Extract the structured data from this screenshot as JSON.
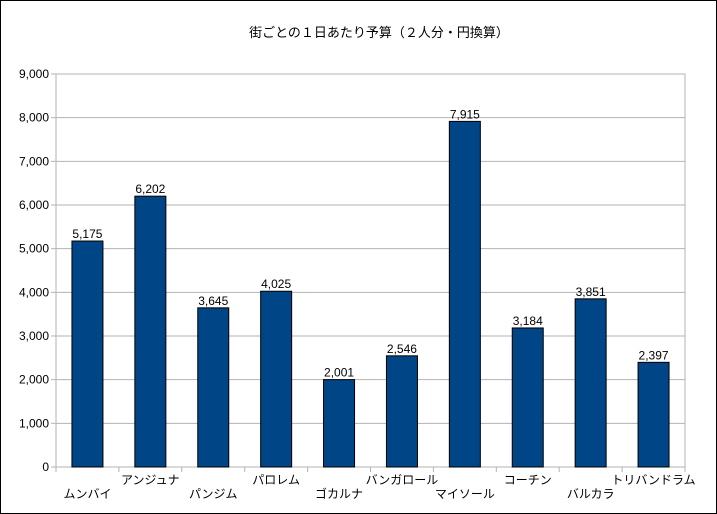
{
  "chart_data": {
    "type": "bar",
    "title": "街ごとの１日あたり予算（２人分・円換算）",
    "xlabel": "",
    "ylabel": "",
    "ylim": [
      0,
      9000
    ],
    "y_ticks": [
      "0",
      "1,000",
      "2,000",
      "3,000",
      "4,000",
      "5,000",
      "6,000",
      "7,000",
      "8,000",
      "9,000"
    ],
    "grid": true,
    "legend": "none",
    "categories": [
      "ムンバイ",
      "アンジュナ",
      "パンジム",
      "パロレム",
      "ゴカルナ",
      "バンガロール",
      "マイソール",
      "コーチン",
      "バルカラ",
      "トリバンドラム"
    ],
    "values": [
      5175,
      6202,
      3645,
      4025,
      2001,
      2546,
      7915,
      3184,
      3851,
      2397
    ],
    "value_labels": [
      "5,175",
      "6,202",
      "3,645",
      "4,025",
      "2,001",
      "2,546",
      "7,915",
      "3,184",
      "3,851",
      "2,397"
    ],
    "colors": {
      "bar": "#004586",
      "grid": "#b3b3b3",
      "axis": "#b3b3b3"
    }
  }
}
